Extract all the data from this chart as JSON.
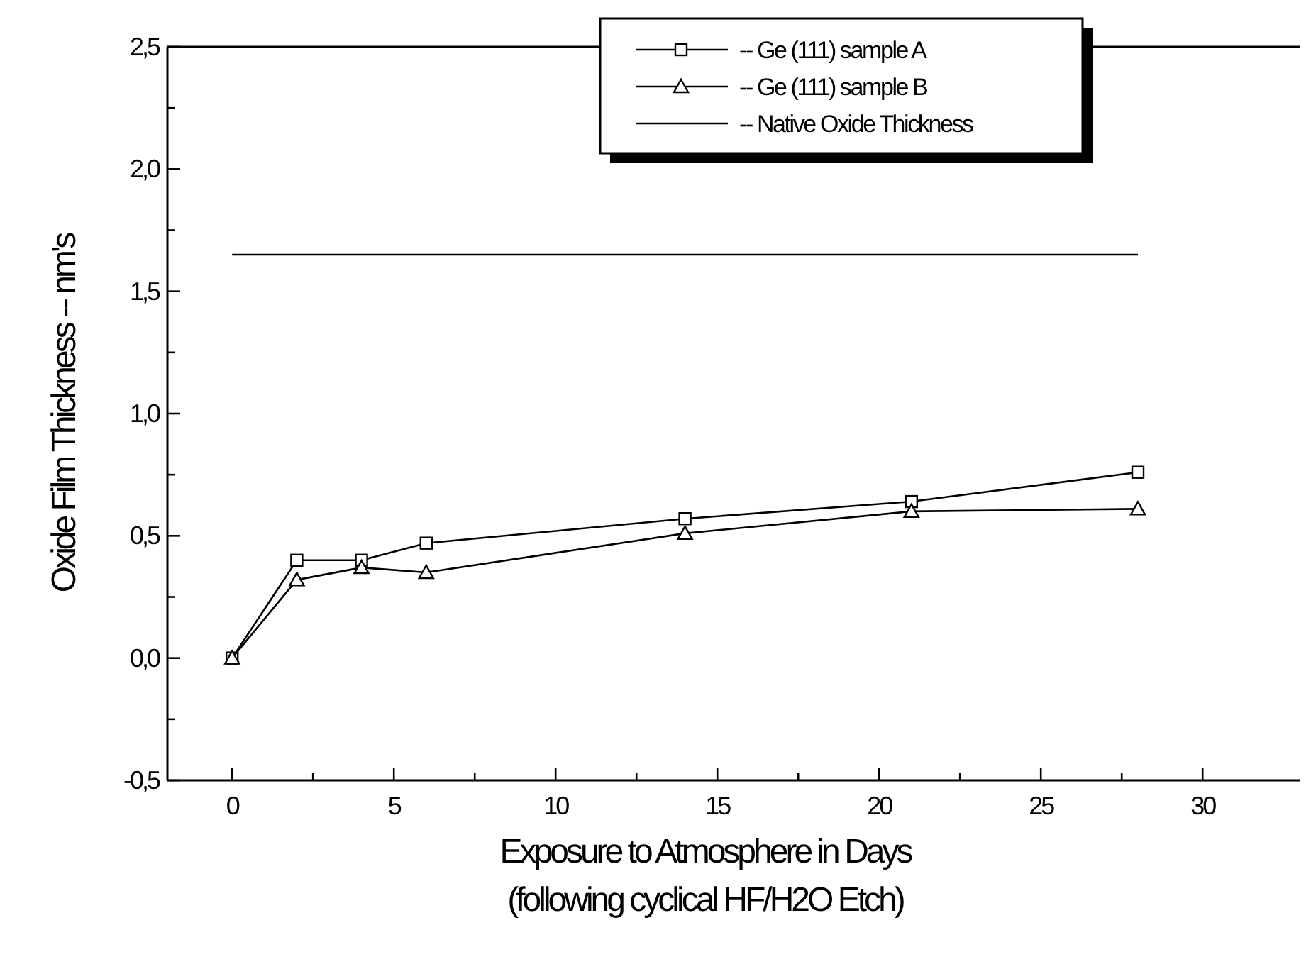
{
  "chart_data": {
    "type": "line",
    "xlabel": "Exposure to Atmosphere in Days",
    "annotations": [
      "(following cyclical HF/H2O Etch)"
    ],
    "ylabel": "Oxide Film Thickness -- nm's",
    "xlim": [
      -2,
      33
    ],
    "ylim": [
      -0.5,
      2.5
    ],
    "xticks": [
      0,
      {
        "value": 2.5,
        "label": null
      },
      5,
      {
        "value": 7.5,
        "label": null
      },
      10,
      {
        "value": 12.5,
        "label": null
      },
      15,
      {
        "value": 17.5,
        "label": null
      },
      20,
      {
        "value": 22.5,
        "label": null
      },
      25,
      {
        "value": 27.5,
        "label": null
      },
      30
    ],
    "yticks": [
      {
        "value": -0.5,
        "label": "-0,5"
      },
      {
        "value": -0.25,
        "label": null
      },
      {
        "value": 0,
        "label": "0,0"
      },
      {
        "value": 0.25,
        "label": null
      },
      {
        "value": 0.5,
        "label": "0,5"
      },
      {
        "value": 0.75,
        "label": null
      },
      {
        "value": 1,
        "label": "1,0"
      },
      {
        "value": 1.25,
        "label": null
      },
      {
        "value": 1.5,
        "label": "1,5"
      },
      {
        "value": 1.75,
        "label": null
      },
      {
        "value": 2,
        "label": "2,0"
      },
      {
        "value": 2.25,
        "label": null
      },
      {
        "value": 2.5,
        "label": "2,5"
      }
    ],
    "legend": "top right",
    "grid": false,
    "series": [
      {
        "name": "-- Ge (111) sample A",
        "color": "#000000",
        "marker": "square",
        "x": [
          0,
          2,
          4,
          6,
          14,
          21,
          28
        ],
        "values": [
          0,
          0.4,
          0.4,
          0.47,
          0.57,
          0.64,
          0.76
        ]
      },
      {
        "name": "-- Ge (111) sample B",
        "color": "#000000",
        "marker": "triangle",
        "x": [
          0,
          2,
          4,
          6,
          14,
          21,
          28
        ],
        "values": [
          0,
          0.32,
          0.37,
          0.35,
          0.51,
          0.6,
          0.61
        ]
      },
      {
        "name": "-- Native Oxide Thickness",
        "color": "#000000",
        "marker": "none",
        "x": [
          0,
          28
        ],
        "values": [
          1.65,
          1.65
        ]
      }
    ]
  }
}
